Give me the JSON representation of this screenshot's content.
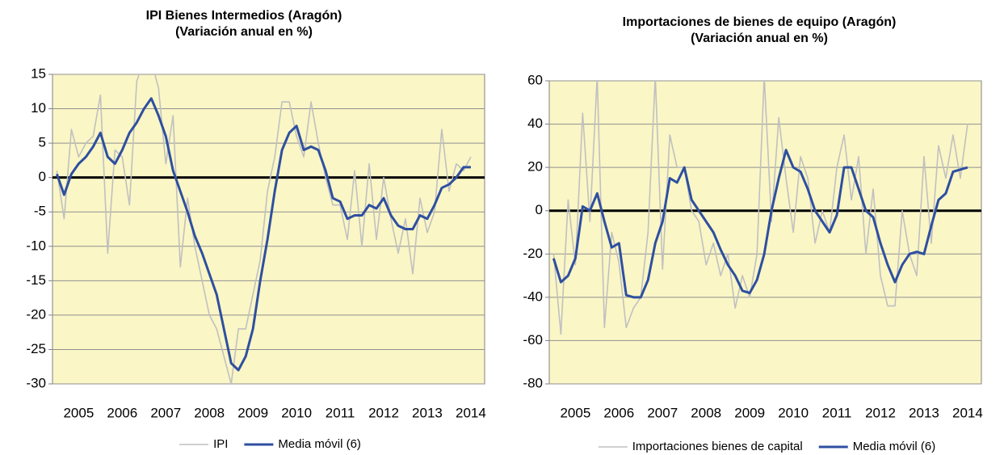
{
  "chart_data": [
    {
      "type": "line",
      "title": "IPI Bienes Intermedios (Aragón)",
      "subtitle": "(Variación anual en %)",
      "categories": [
        null,
        null,
        null,
        "2005",
        null,
        null,
        null,
        null,
        null,
        "2006",
        null,
        null,
        null,
        null,
        null,
        "2007",
        null,
        null,
        null,
        null,
        null,
        "2008",
        null,
        null,
        null,
        null,
        null,
        "2009",
        null,
        null,
        null,
        null,
        null,
        "2010",
        null,
        null,
        null,
        null,
        null,
        "2011",
        null,
        null,
        null,
        null,
        null,
        "2012",
        null,
        null,
        null,
        null,
        null,
        "2013",
        null,
        null,
        null,
        null,
        null,
        "2014"
      ],
      "series": [
        {
          "name": "IPI",
          "color": "#c0c0c0",
          "values": [
            1,
            -6,
            7,
            3,
            5,
            6,
            12,
            -11,
            4,
            3,
            -4,
            14,
            17,
            17,
            13,
            2,
            9,
            -13,
            -3,
            -10,
            -15,
            -20,
            -22,
            -26,
            -30,
            -22,
            -22,
            -17,
            -12,
            -2,
            3,
            11,
            11,
            6,
            3,
            11,
            5,
            0,
            -4,
            -4,
            -9,
            1,
            -10,
            2,
            -9,
            0,
            -6,
            -11,
            -6,
            -14,
            -3,
            -8,
            -5,
            7,
            -2,
            2,
            1,
            3
          ]
        },
        {
          "name": "Media móvil (6)",
          "color": "#2e4fa0",
          "values": [
            0.5,
            -2.5,
            0.5,
            2,
            3,
            4.5,
            6.5,
            3,
            2,
            4,
            6.5,
            8,
            10,
            11.5,
            9,
            6,
            1,
            -2,
            -5,
            -8.5,
            -11,
            -14,
            -17,
            -22,
            -27,
            -28,
            -26,
            -22,
            -15,
            -9,
            -2,
            4,
            6.5,
            7.5,
            4,
            4.5,
            4,
            1,
            -3,
            -3.5,
            -6,
            -5.5,
            -5.5,
            -4,
            -4.5,
            -3,
            -5.5,
            -7,
            -7.5,
            -7.5,
            -5.5,
            -6,
            -4,
            -1.5,
            -1,
            0,
            1.5,
            1.5
          ]
        }
      ],
      "ylim": [
        -30,
        15
      ],
      "yticks": [
        -30,
        -25,
        -20,
        -15,
        -10,
        -5,
        0,
        5,
        10,
        15
      ],
      "grid": true,
      "legend": "bottom"
    },
    {
      "type": "line",
      "title": "Importaciones de bienes de equipo (Aragón)",
      "subtitle": "(Variación anual en %)",
      "categories": [
        null,
        null,
        null,
        "2005",
        null,
        null,
        null,
        null,
        null,
        "2006",
        null,
        null,
        null,
        null,
        null,
        "2007",
        null,
        null,
        null,
        null,
        null,
        "2008",
        null,
        null,
        null,
        null,
        null,
        "2009",
        null,
        null,
        null,
        null,
        null,
        "2010",
        null,
        null,
        null,
        null,
        null,
        "2011",
        null,
        null,
        null,
        null,
        null,
        "2012",
        null,
        null,
        null,
        null,
        null,
        "2013",
        null,
        null,
        null,
        null,
        null,
        "2014"
      ],
      "series": [
        {
          "name": "Importaciones bienes de capital",
          "color": "#c0c0c0",
          "values": [
            -20,
            -57,
            5,
            -25,
            45,
            -5,
            62,
            -54,
            -10,
            -24,
            -54,
            -45,
            -40,
            -10,
            62,
            -27,
            35,
            20,
            20,
            0,
            -5,
            -25,
            -15,
            -30,
            -20,
            -45,
            -30,
            -40,
            -20,
            62,
            -5,
            43,
            15,
            -10,
            25,
            15,
            -15,
            0,
            -10,
            20,
            35,
            5,
            25,
            -20,
            10,
            -30,
            -44,
            -44,
            0,
            -20,
            -30,
            25,
            -15,
            30,
            15,
            35,
            15,
            40
          ]
        },
        {
          "name": "Media móvil (6)",
          "color": "#2e4fa0",
          "values": [
            -22,
            -33,
            -30,
            -22,
            2,
            0,
            8,
            -5,
            -17,
            -15,
            -39,
            -40,
            -40,
            -32,
            -15,
            -5,
            15,
            13,
            20,
            5,
            0,
            -5,
            -10,
            -18,
            -25,
            -30,
            -37,
            -38,
            -32,
            -20,
            0,
            15,
            28,
            20,
            18,
            10,
            0,
            -5,
            -10,
            -2,
            20,
            20,
            10,
            0,
            -3,
            -15,
            -25,
            -33,
            -25,
            -20,
            -19,
            -20,
            -7,
            5,
            8,
            18,
            19,
            20
          ]
        }
      ],
      "ylim": [
        -80,
        60
      ],
      "yticks": [
        -80,
        -60,
        -40,
        -20,
        0,
        20,
        40,
        60
      ],
      "grid": true,
      "legend": "bottom"
    }
  ]
}
